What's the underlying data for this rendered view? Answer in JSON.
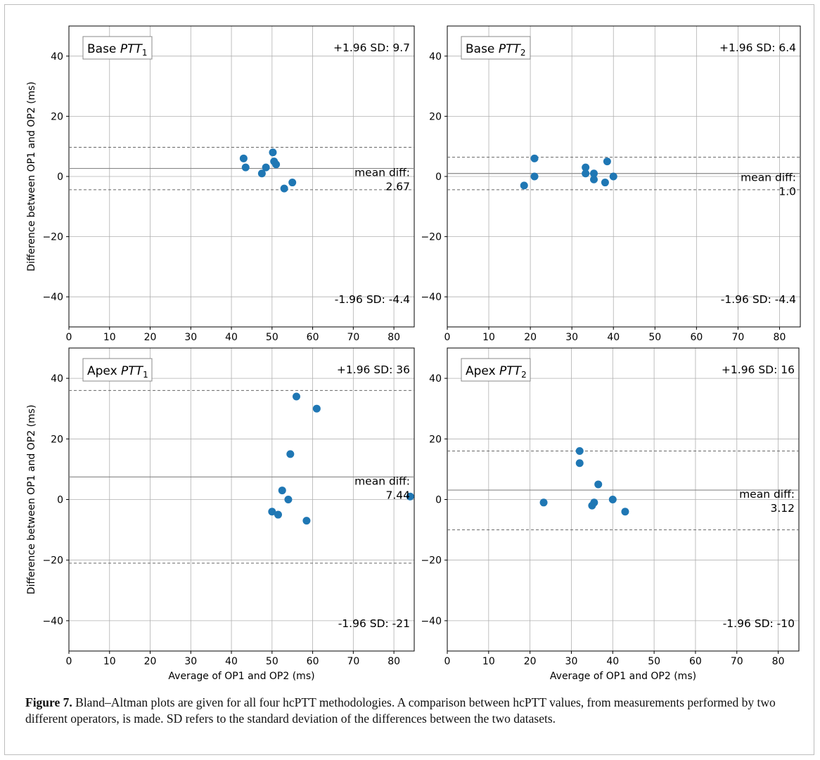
{
  "figure": {
    "caption_label": "Figure 7.",
    "caption_text": " Bland–Altman plots are given for all four hcPTT methodologies. A comparison between hcPTT values, from measurements performed by two different operators, is made. SD refers to the standard deviation of the differences between the two datasets."
  },
  "chart_data": [
    {
      "type": "scatter",
      "title_prefix": "Base ",
      "title_var": "PTT",
      "title_sub": "1",
      "xlabel": "",
      "ylabel": "Difference between OP1 and OP2 (ms)",
      "xlim": [
        0,
        85
      ],
      "ylim": [
        -50,
        50
      ],
      "xticks": [
        0,
        10,
        20,
        30,
        40,
        50,
        60,
        70,
        80
      ],
      "yticks": [
        -40,
        -20,
        0,
        20,
        40
      ],
      "grid": true,
      "points": [
        [
          43,
          6
        ],
        [
          43.5,
          3
        ],
        [
          47.5,
          1
        ],
        [
          48.5,
          3
        ],
        [
          50.2,
          8
        ],
        [
          50.5,
          5
        ],
        [
          51,
          4
        ],
        [
          53,
          -4
        ],
        [
          55,
          -2
        ]
      ],
      "mean_diff": 2.67,
      "upper": 9.7,
      "lower": -4.4,
      "upper_text": "+1.96 SD: 9.7",
      "mean_text_1": "mean diff:",
      "mean_text_2": "2.67",
      "lower_text": "-1.96 SD: -4.4",
      "color": "#1f77b4"
    },
    {
      "type": "scatter",
      "title_prefix": "Base ",
      "title_var": "PTT",
      "title_sub": "2",
      "xlabel": "",
      "ylabel": "",
      "xlim": [
        0,
        85
      ],
      "ylim": [
        -50,
        50
      ],
      "xticks": [
        0,
        10,
        20,
        30,
        40,
        50,
        60,
        70,
        80
      ],
      "yticks": [
        -40,
        -20,
        0,
        20,
        40
      ],
      "grid": true,
      "points": [
        [
          18.5,
          -3
        ],
        [
          21,
          6
        ],
        [
          21,
          0
        ],
        [
          33.3,
          3
        ],
        [
          33.3,
          1
        ],
        [
          35.3,
          1
        ],
        [
          35.3,
          -1
        ],
        [
          38,
          -2
        ],
        [
          38.5,
          5
        ],
        [
          40,
          0
        ]
      ],
      "mean_diff": 1.0,
      "upper": 6.4,
      "lower": -4.4,
      "upper_text": "+1.96 SD: 6.4",
      "mean_text_1": "mean diff:",
      "mean_text_2": "1.0",
      "lower_text": "-1.96 SD: -4.4",
      "color": "#1f77b4"
    },
    {
      "type": "scatter",
      "title_prefix": "Apex ",
      "title_var": "PTT",
      "title_sub": "1",
      "xlabel": "Average of OP1 and OP2 (ms)",
      "ylabel": "Difference between OP1 and OP2 (ms)",
      "xlim": [
        0,
        85
      ],
      "ylim": [
        -50,
        50
      ],
      "xticks": [
        0,
        10,
        20,
        30,
        40,
        50,
        60,
        70,
        80
      ],
      "yticks": [
        -40,
        -20,
        0,
        20,
        40
      ],
      "grid": true,
      "points": [
        [
          56,
          34
        ],
        [
          61,
          30
        ],
        [
          54.5,
          15
        ],
        [
          52.5,
          3
        ],
        [
          54,
          0
        ],
        [
          50,
          -4
        ],
        [
          51.5,
          -5
        ],
        [
          58.5,
          -7
        ],
        [
          84,
          1
        ]
      ],
      "mean_diff": 7.44,
      "upper": 36,
      "lower": -21,
      "upper_text": "+1.96 SD: 36",
      "mean_text_1": "mean diff:",
      "mean_text_2": "7.44",
      "lower_text": "-1.96 SD: -21",
      "color": "#1f77b4"
    },
    {
      "type": "scatter",
      "title_prefix": "Apex ",
      "title_var": "PTT",
      "title_sub": "2",
      "xlabel": "Average of OP1 and OP2 (ms)",
      "ylabel": "",
      "xlim": [
        0,
        85
      ],
      "ylim": [
        -50,
        50
      ],
      "xticks": [
        0,
        10,
        20,
        30,
        40,
        50,
        60,
        70,
        80
      ],
      "yticks": [
        -40,
        -20,
        0,
        20,
        40
      ],
      "grid": true,
      "points": [
        [
          23.3,
          -1
        ],
        [
          32,
          16
        ],
        [
          32,
          12
        ],
        [
          36.5,
          5
        ],
        [
          35.5,
          -1
        ],
        [
          35,
          -2
        ],
        [
          40,
          0
        ],
        [
          43,
          -4
        ]
      ],
      "mean_diff": 3.12,
      "upper": 16,
      "lower": -10,
      "upper_text": "+1.96 SD: 16",
      "mean_text_1": "mean diff:",
      "mean_text_2": "3.12",
      "lower_text": "-1.96 SD: -10",
      "color": "#1f77b4"
    }
  ]
}
